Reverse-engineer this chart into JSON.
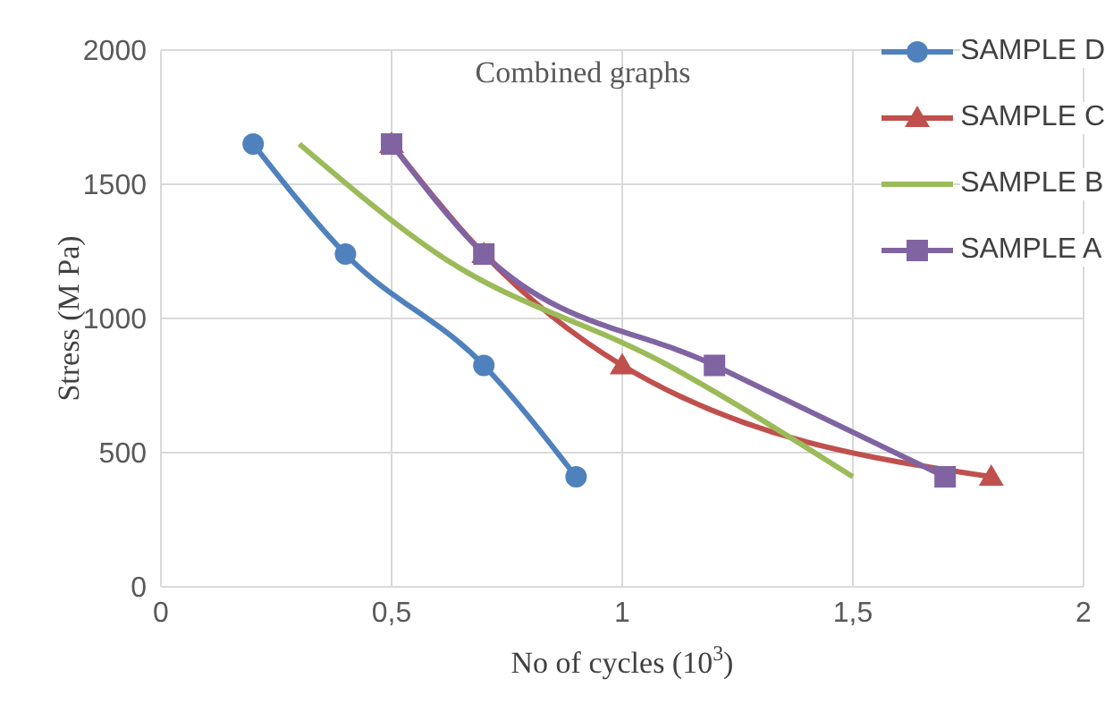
{
  "chart_data": {
    "type": "line",
    "title": "Combined graphs",
    "xlabel": "No of cycles (10$^{3}$)",
    "ylabel": "Stress (M Pa)",
    "xlim": [
      0,
      2
    ],
    "xticks": [
      0,
      {
        "value": 0.5,
        "label": "0,5"
      },
      1,
      {
        "value": 1.5,
        "label": "1,5"
      },
      2
    ],
    "ylim": [
      0,
      2000
    ],
    "yticks": [
      0,
      500,
      1000,
      1500,
      2000
    ],
    "grid": true,
    "legend": "top right",
    "line_style": "solid",
    "series": [
      {
        "name": "SAMPLE D",
        "color": "#4f81bd",
        "marker": "circle",
        "x": [
          0.2,
          0.4,
          0.7,
          0.9
        ],
        "values": [
          1650,
          1240,
          825,
          410
        ]
      },
      {
        "name": "SAMPLE C",
        "color": "#c0504d",
        "marker": "triangle",
        "x": [
          0.5,
          0.7,
          1.0,
          1.8
        ],
        "values": [
          1650,
          1240,
          825,
          410
        ]
      },
      {
        "name": "SAMPLE B",
        "color": "#9bbb59",
        "marker": "none",
        "x": [
          0.3,
          0.6,
          1.1,
          1.5
        ],
        "values": [
          1650,
          1240,
          825,
          410
        ]
      },
      {
        "name": "SAMPLE A",
        "color": "#8064a2",
        "marker": "square",
        "x": [
          0.5,
          0.7,
          1.2,
          1.7
        ],
        "values": [
          1650,
          1240,
          825,
          410
        ]
      }
    ]
  }
}
